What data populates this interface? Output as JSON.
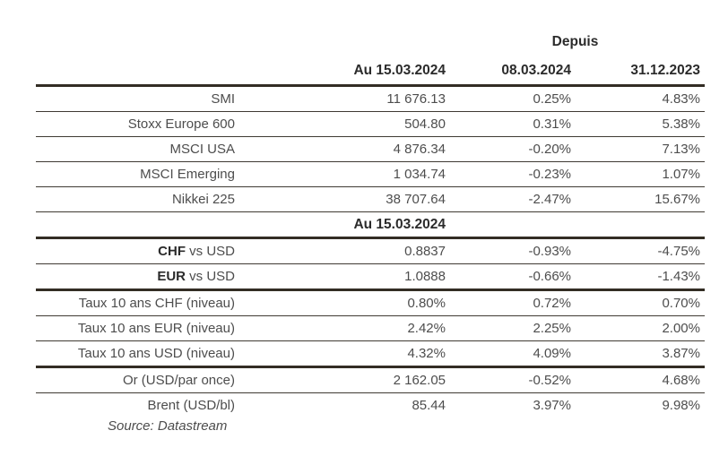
{
  "header": {
    "depuis": "Depuis",
    "col_current": "Au 15.03.2024",
    "col_week": "08.03.2024",
    "col_ytd": "31.12.2023"
  },
  "mid_header": "Au 15.03.2024",
  "indices": [
    {
      "label": "SMI",
      "current": "11 676.13",
      "week": "0.25%",
      "ytd": "4.83%"
    },
    {
      "label": "Stoxx Europe 600",
      "current": "504.80",
      "week": "0.31%",
      "ytd": "5.38%"
    },
    {
      "label": "MSCI USA",
      "current": "4 876.34",
      "week": "-0.20%",
      "ytd": "7.13%"
    },
    {
      "label": "MSCI Emerging",
      "current": "1 034.74",
      "week": "-0.23%",
      "ytd": "1.07%"
    },
    {
      "label": "Nikkei 225",
      "current": "38 707.64",
      "week": "-2.47%",
      "ytd": "15.67%"
    }
  ],
  "fx": [
    {
      "code": "CHF",
      "label": " vs USD",
      "current": "0.8837",
      "week": "-0.93%",
      "ytd": "-4.75%"
    },
    {
      "code": "EUR",
      "label": " vs USD",
      "current": "1.0888",
      "week": "-0.66%",
      "ytd": "-1.43%"
    }
  ],
  "rates": [
    {
      "label": "Taux 10 ans CHF (niveau)",
      "current": "0.80%",
      "week": "0.72%",
      "ytd": "0.70%"
    },
    {
      "label": "Taux 10 ans EUR (niveau)",
      "current": "2.42%",
      "week": "2.25%",
      "ytd": "2.00%"
    },
    {
      "label": "Taux 10 ans USD (niveau)",
      "current": "4.32%",
      "week": "4.09%",
      "ytd": "3.87%"
    }
  ],
  "commodities": [
    {
      "label": "Or (USD/par once)",
      "current": "2 162.05",
      "week": "-0.52%",
      "ytd": "4.68%"
    },
    {
      "label": "Brent (USD/bl)",
      "current": "85.44",
      "week": "3.97%",
      "ytd": "9.98%"
    }
  ],
  "source": "Source: Datastream",
  "colors": {
    "thick_rule": "#332d24",
    "thin_rule": "#3f3a33",
    "heading_text": "#2b2b2b",
    "body_text": "#4d4d4d",
    "background": "#ffffff"
  }
}
